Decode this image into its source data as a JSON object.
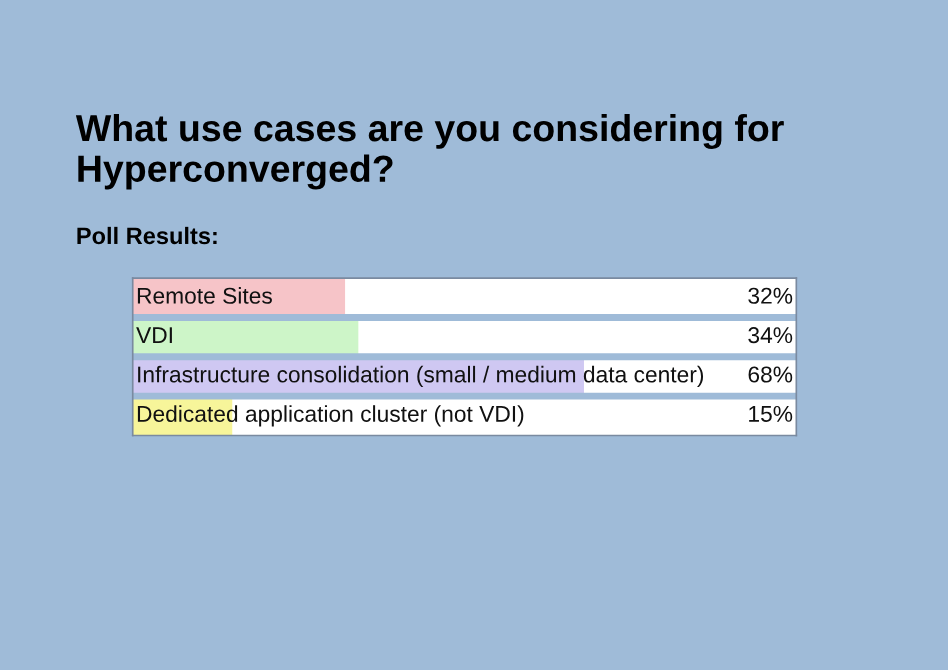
{
  "chart_data": {
    "type": "bar",
    "orientation": "horizontal",
    "title": "What use cases are you considering for Hyperconverged?",
    "subtitle": "Poll Results:",
    "categories": [
      "Remote Sites",
      "VDI",
      "Infrastructure consolidation (small / medium data center)",
      "Dedicated application cluster (not VDI)"
    ],
    "values": [
      32,
      34,
      68,
      15
    ],
    "colors": [
      "#f6c4c8",
      "#cdf5c8",
      "#cfc8f2",
      "#f7f59a"
    ],
    "value_labels": [
      "32%",
      "34%",
      "68%",
      "15%"
    ],
    "xlim": [
      0,
      100
    ]
  }
}
